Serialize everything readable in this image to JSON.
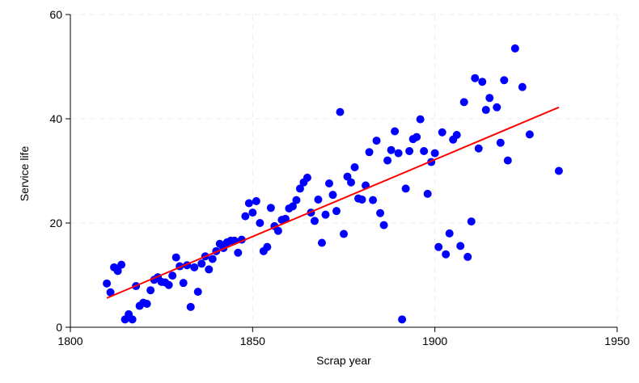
{
  "chart_data": {
    "type": "scatter",
    "xlabel": "Scrap year",
    "ylabel": "Service life",
    "xlim": [
      1800,
      1950
    ],
    "ylim": [
      0,
      60
    ],
    "xticks": [
      1800,
      1850,
      1900,
      1950
    ],
    "yticks": [
      0,
      20,
      40,
      60
    ],
    "grid": true,
    "point_color": "#0000ff",
    "fit_line_color": "#ff0000",
    "fit_line": {
      "x": [
        1810,
        1934
      ],
      "y": [
        5.6,
        42.2
      ]
    },
    "series": [
      {
        "points": [
          [
            1810,
            8.4
          ],
          [
            1811,
            6.7
          ],
          [
            1812,
            11.5
          ],
          [
            1813,
            10.8
          ],
          [
            1814,
            12.0
          ],
          [
            1815,
            1.5
          ],
          [
            1816,
            2.5
          ],
          [
            1817,
            1.5
          ],
          [
            1818,
            7.9
          ],
          [
            1819,
            4.1
          ],
          [
            1820,
            4.7
          ],
          [
            1821,
            4.5
          ],
          [
            1822,
            7.1
          ],
          [
            1823,
            9.1
          ],
          [
            1824,
            9.6
          ],
          [
            1825,
            8.7
          ],
          [
            1826,
            8.6
          ],
          [
            1827,
            8.1
          ],
          [
            1828,
            9.9
          ],
          [
            1829,
            13.4
          ],
          [
            1830,
            11.7
          ],
          [
            1831,
            8.5
          ],
          [
            1832,
            11.9
          ],
          [
            1833,
            3.9
          ],
          [
            1834,
            11.5
          ],
          [
            1835,
            6.8
          ],
          [
            1836,
            12.2
          ],
          [
            1837,
            13.6
          ],
          [
            1838,
            11.1
          ],
          [
            1839,
            13.1
          ],
          [
            1840,
            14.6
          ],
          [
            1841,
            16.0
          ],
          [
            1842,
            15.2
          ],
          [
            1843,
            16.3
          ],
          [
            1844,
            16.6
          ],
          [
            1845,
            16.6
          ],
          [
            1846,
            14.3
          ],
          [
            1847,
            16.8
          ],
          [
            1848,
            21.3
          ],
          [
            1849,
            23.8
          ],
          [
            1850,
            22.0
          ],
          [
            1851,
            24.2
          ],
          [
            1852,
            20.0
          ],
          [
            1853,
            14.6
          ],
          [
            1854,
            15.4
          ],
          [
            1855,
            22.9
          ],
          [
            1856,
            19.4
          ],
          [
            1857,
            18.5
          ],
          [
            1858,
            20.6
          ],
          [
            1859,
            20.8
          ],
          [
            1860,
            22.8
          ],
          [
            1861,
            23.2
          ],
          [
            1862,
            24.4
          ],
          [
            1863,
            26.6
          ],
          [
            1864,
            27.8
          ],
          [
            1865,
            28.7
          ],
          [
            1866,
            22.0
          ],
          [
            1867,
            20.4
          ],
          [
            1868,
            24.5
          ],
          [
            1869,
            16.2
          ],
          [
            1870,
            21.6
          ],
          [
            1871,
            27.6
          ],
          [
            1872,
            25.4
          ],
          [
            1873,
            22.3
          ],
          [
            1874,
            41.3
          ],
          [
            1875,
            17.9
          ],
          [
            1876,
            28.9
          ],
          [
            1877,
            27.8
          ],
          [
            1878,
            30.7
          ],
          [
            1879,
            24.7
          ],
          [
            1880,
            24.5
          ],
          [
            1881,
            27.2
          ],
          [
            1882,
            33.6
          ],
          [
            1883,
            24.4
          ],
          [
            1884,
            35.8
          ],
          [
            1885,
            21.9
          ],
          [
            1886,
            19.6
          ],
          [
            1887,
            32.0
          ],
          [
            1888,
            34.0
          ],
          [
            1889,
            37.6
          ],
          [
            1890,
            33.4
          ],
          [
            1891,
            1.5
          ],
          [
            1892,
            26.6
          ],
          [
            1893,
            33.8
          ],
          [
            1894,
            36.1
          ],
          [
            1895,
            36.5
          ],
          [
            1896,
            39.9
          ],
          [
            1897,
            33.8
          ],
          [
            1898,
            25.6
          ],
          [
            1899,
            31.7
          ],
          [
            1900,
            33.4
          ],
          [
            1901,
            15.4
          ],
          [
            1902,
            37.4
          ],
          [
            1903,
            14.0
          ],
          [
            1904,
            18.0
          ],
          [
            1905,
            36.0
          ],
          [
            1906,
            36.9
          ],
          [
            1907,
            15.6
          ],
          [
            1908,
            43.2
          ],
          [
            1909,
            13.5
          ],
          [
            1910,
            20.3
          ],
          [
            1911,
            47.8
          ],
          [
            1912,
            34.3
          ],
          [
            1913,
            47.1
          ],
          [
            1914,
            41.7
          ],
          [
            1915,
            44.0
          ],
          [
            1917,
            42.2
          ],
          [
            1918,
            35.4
          ],
          [
            1919,
            47.4
          ],
          [
            1920,
            32.0
          ],
          [
            1922,
            53.5
          ],
          [
            1924,
            46.1
          ],
          [
            1926,
            37.0
          ],
          [
            1934,
            30.0
          ]
        ]
      }
    ]
  }
}
